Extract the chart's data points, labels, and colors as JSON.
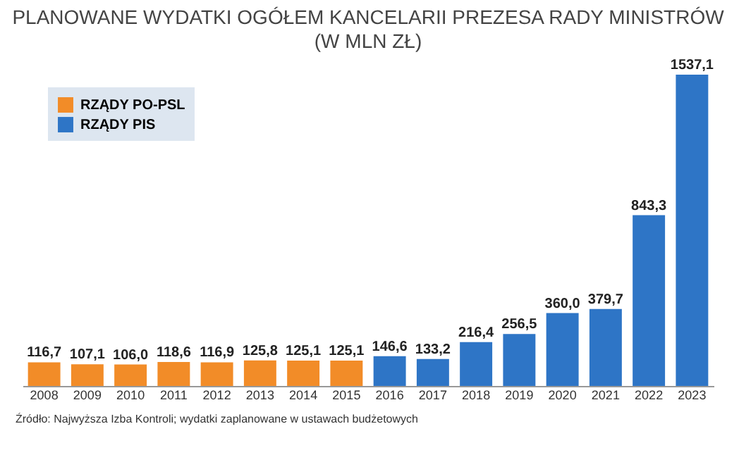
{
  "chart_data": {
    "type": "bar",
    "title": "PLANOWANE WYDATKI OGÓŁEM KANCELARII PREZESA RADY MINISTRÓW",
    "subtitle": "(W MLN ZŁ)",
    "categories": [
      "2008",
      "2009",
      "2010",
      "2011",
      "2012",
      "2013",
      "2014",
      "2015",
      "2016",
      "2017",
      "2018",
      "2019",
      "2020",
      "2021",
      "2022",
      "2023"
    ],
    "series": [
      {
        "name": "RZĄDY PO-PSL",
        "color": "#f28c28",
        "values": [
          116.7,
          107.1,
          106.0,
          118.6,
          116.9,
          125.8,
          125.1,
          125.1,
          null,
          null,
          null,
          null,
          null,
          null,
          null,
          null
        ],
        "value_labels": [
          "116,7",
          "107,1",
          "106,0",
          "118,6",
          "116,9",
          "125,8",
          "125,1",
          "125,1",
          null,
          null,
          null,
          null,
          null,
          null,
          null,
          null
        ]
      },
      {
        "name": "RZĄDY PIS",
        "color": "#2e75c6",
        "values": [
          null,
          null,
          null,
          null,
          null,
          null,
          null,
          null,
          146.6,
          133.2,
          216.4,
          256.5,
          360.0,
          379.7,
          843.3,
          1537.1
        ],
        "value_labels": [
          null,
          null,
          null,
          null,
          null,
          null,
          null,
          null,
          "146,6",
          "133,2",
          "216,4",
          "256,5",
          "360,0",
          "379,7",
          "843,3",
          "1537,1"
        ]
      }
    ],
    "legend": "top left",
    "annotations": [
      "Źródło: Najwyższa Izba Kontroli; wydatki zaplanowane w ustawach budżetowych"
    ]
  }
}
